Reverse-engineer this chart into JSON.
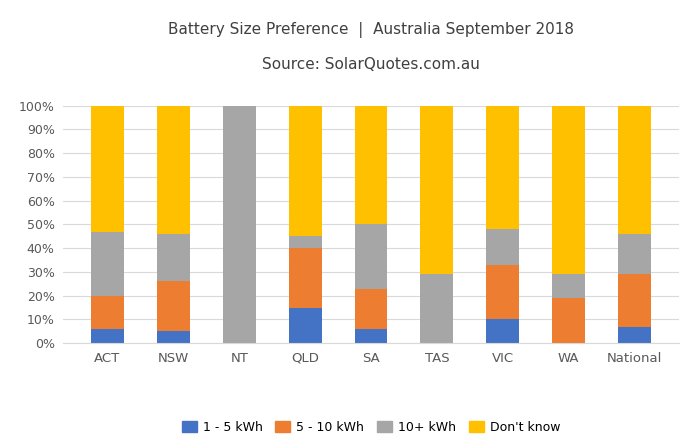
{
  "categories": [
    "ACT",
    "NSW",
    "NT",
    "QLD",
    "SA",
    "TAS",
    "VIC",
    "WA",
    "National"
  ],
  "series": {
    "1 - 5 kWh": [
      6,
      5,
      0,
      15,
      6,
      0,
      10,
      0,
      7
    ],
    "5 - 10 kWh": [
      14,
      21,
      0,
      25,
      17,
      0,
      23,
      19,
      22
    ],
    "10+ kWh": [
      27,
      20,
      100,
      5,
      27,
      29,
      15,
      10,
      17
    ],
    "Don't know": [
      53,
      54,
      0,
      55,
      50,
      71,
      52,
      71,
      54
    ]
  },
  "colors": {
    "1 - 5 kWh": "#4472c4",
    "5 - 10 kWh": "#ed7d31",
    "10+ kWh": "#a6a6a6",
    "Don't know": "#ffc000"
  },
  "title_line1": "Battery Size Preference  |  Australia September 2018",
  "title_line2": "Source: SolarQuotes.com.au",
  "ylim": [
    0,
    100
  ],
  "ytick_labels": [
    "0%",
    "10%",
    "20%",
    "30%",
    "40%",
    "50%",
    "60%",
    "70%",
    "80%",
    "90%",
    "100%"
  ],
  "background_color": "#ffffff",
  "grid_color": "#d9d9d9"
}
